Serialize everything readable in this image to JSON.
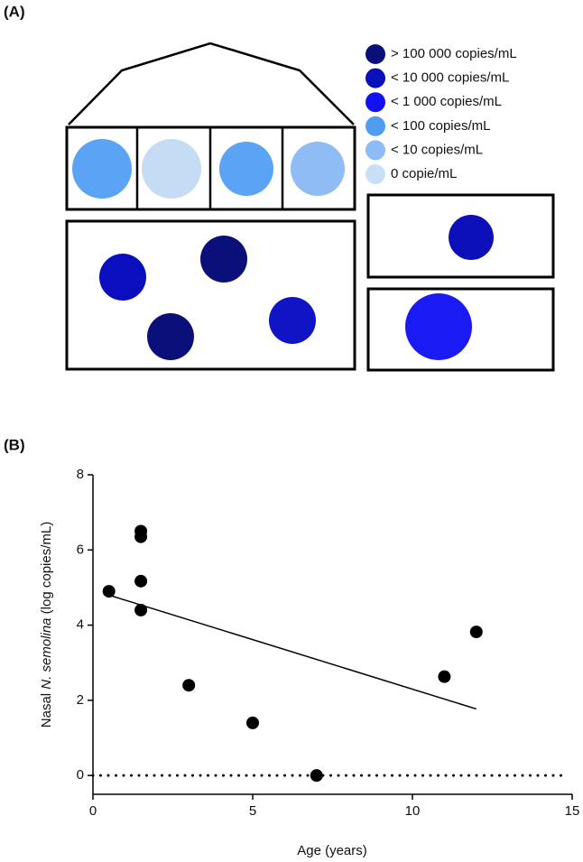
{
  "panels": [
    "(A)",
    "(B)"
  ],
  "diagram": {
    "legend": [
      {
        "label": "> 100 000 copies/mL",
        "color": "#0b0f7a"
      },
      {
        "label": "< 10 000 copies/mL",
        "color": "#0a10b8"
      },
      {
        "label": "< 1 000 copies/mL",
        "color": "#1212f0"
      },
      {
        "label": "< 100 copies/mL",
        "color": "#4f9cf0"
      },
      {
        "label": "< 10 copies/mL",
        "color": "#8dbbf5"
      },
      {
        "label": "0 copie/mL",
        "color": "#c9dff7"
      }
    ],
    "circles": [
      "#5ba3f5",
      "#c6dcf5",
      "#5ba3f5",
      "#8fbcf5",
      "#0a0ebf",
      "#0b0f7a",
      "#0b0f7a",
      "#1014c4",
      "#0c10b8",
      "#1a1af5"
    ]
  },
  "chart_data": {
    "type": "scatter",
    "x_label": "Age (years)",
    "y_label": [
      "Nasal ",
      "N. semolina",
      " (log copies/mL)"
    ],
    "x": [
      0.5,
      1.5,
      1.5,
      1.5,
      1.5,
      3,
      5,
      7,
      11,
      12
    ],
    "values": [
      4.9,
      6.5,
      6.35,
      5.17,
      4.4,
      2.4,
      1.4,
      0,
      2.63,
      3.82
    ],
    "color": "#000000",
    "trendline": {
      "x": [
        0.5,
        12
      ],
      "y": [
        4.8,
        1.77
      ]
    },
    "hline": 0,
    "xlim": [
      0,
      15
    ],
    "xticks": [
      0,
      5,
      10,
      15
    ],
    "ylim": [
      -0.5,
      8
    ],
    "yticks": [
      0,
      2,
      4,
      6,
      8
    ]
  }
}
